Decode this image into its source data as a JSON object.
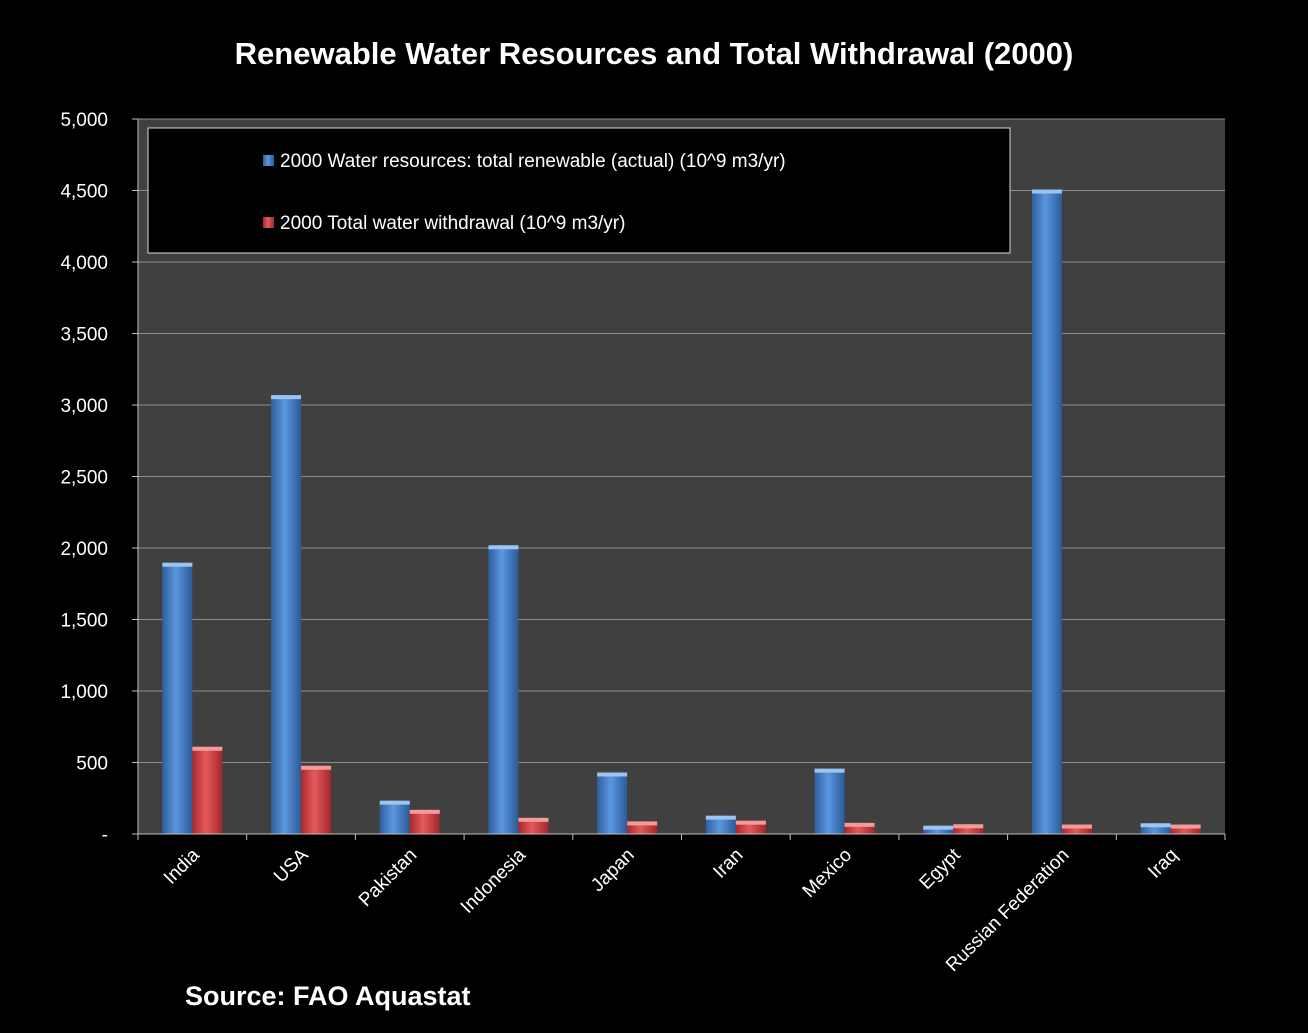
{
  "chart_data": {
    "type": "bar",
    "title": "Renewable Water Resources and Total Withdrawal (2000)",
    "xlabel": "",
    "ylabel": "",
    "ylim": [
      0,
      5000
    ],
    "yticks": [
      0,
      500,
      1000,
      1500,
      2000,
      2500,
      3000,
      3500,
      4000,
      4500,
      5000
    ],
    "ytick_labels": [
      "-",
      "500",
      "1,000",
      "1,500",
      "2,000",
      "2,500",
      "3,000",
      "3,500",
      "4,000",
      "4,500",
      "5,000"
    ],
    "grid": true,
    "legend_position": "top-left",
    "categories": [
      "India",
      "USA",
      "Pakistan",
      "Indonesia",
      "Japan",
      "Iran",
      "Mexico",
      "Egypt",
      "Russian Federation",
      "Iraq"
    ],
    "series": [
      {
        "name": "2000 Water resources: total renewable (actual) (10^9 m3/yr)",
        "color": "#4a86d4",
        "values": [
          1897,
          3069,
          233,
          2019,
          430,
          128,
          457,
          58,
          4507,
          75
        ]
      },
      {
        "name": "2000 Total water withdrawal (10^9 m3/yr)",
        "color": "#d9474a",
        "values": [
          610,
          477,
          169,
          113,
          88,
          93,
          78,
          68,
          66,
          66
        ]
      }
    ],
    "annotations": [
      "Source: FAO Aquastat"
    ]
  }
}
